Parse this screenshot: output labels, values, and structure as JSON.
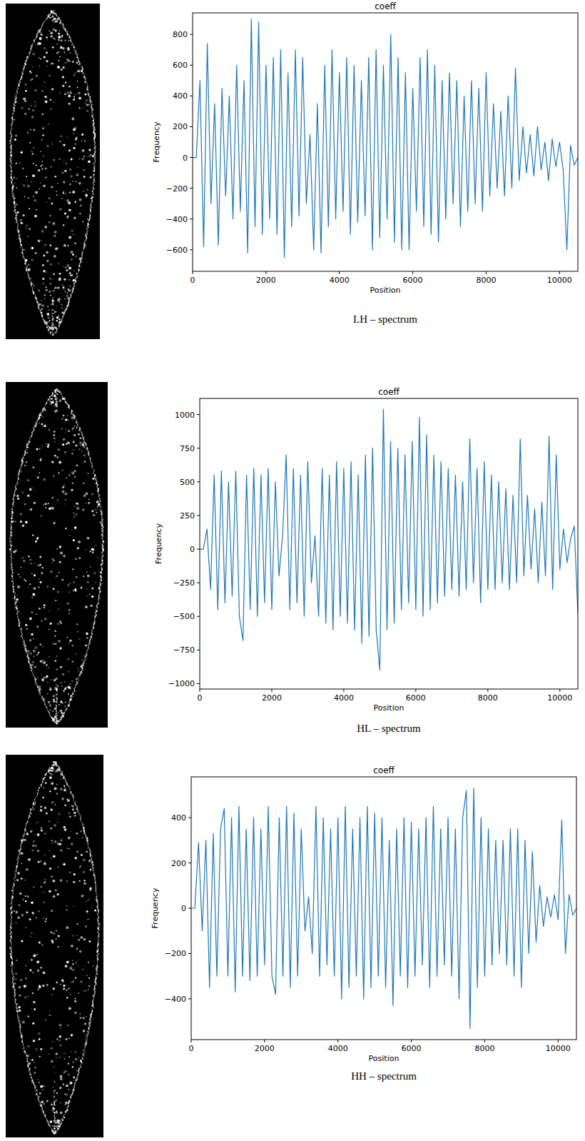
{
  "chart_data": [
    {
      "type": "line",
      "title": "coeff",
      "x_label": "Position",
      "y_label": "Frequency",
      "caption": "LH – spectrum",
      "color": "#1f77b4",
      "xlim": [
        0,
        10500
      ],
      "xticks": [
        0,
        2000,
        4000,
        6000,
        8000,
        10000
      ],
      "ylim": [
        -740,
        940
      ],
      "yticks": [
        {
          "value": -600,
          "label": "−600"
        },
        {
          "value": -400,
          "label": "−400"
        },
        {
          "value": -200,
          "label": "−200"
        },
        0,
        200,
        400,
        600,
        800
      ],
      "x": [
        0,
        100,
        200,
        300,
        400,
        500,
        600,
        700,
        800,
        900,
        1000,
        1100,
        1200,
        1300,
        1400,
        1500,
        1600,
        1700,
        1800,
        1900,
        2000,
        2100,
        2200,
        2300,
        2400,
        2500,
        2600,
        2700,
        2800,
        2900,
        3000,
        3100,
        3200,
        3300,
        3400,
        3500,
        3600,
        3700,
        3800,
        3900,
        4000,
        4100,
        4200,
        4300,
        4400,
        4500,
        4600,
        4700,
        4800,
        4900,
        5000,
        5100,
        5200,
        5300,
        5400,
        5500,
        5600,
        5700,
        5800,
        5900,
        6000,
        6100,
        6200,
        6300,
        6400,
        6500,
        6600,
        6700,
        6800,
        6900,
        7000,
        7100,
        7200,
        7300,
        7400,
        7500,
        7600,
        7700,
        7800,
        7900,
        8000,
        8100,
        8200,
        8300,
        8400,
        8500,
        8600,
        8700,
        8800,
        8900,
        9000,
        9100,
        9200,
        9300,
        9400,
        9500,
        9600,
        9700,
        9800,
        9900,
        10000,
        10100,
        10200,
        10300,
        10400,
        10500
      ],
      "values": [
        0,
        0,
        500,
        -580,
        740,
        -300,
        350,
        -570,
        450,
        -250,
        400,
        -400,
        600,
        -350,
        500,
        -620,
        900,
        -450,
        880,
        -500,
        600,
        -400,
        650,
        -500,
        700,
        -650,
        550,
        -450,
        700,
        -380,
        650,
        -300,
        150,
        -600,
        350,
        -620,
        600,
        -450,
        700,
        -400,
        550,
        -350,
        650,
        -500,
        600,
        -420,
        500,
        -380,
        650,
        -600,
        700,
        -520,
        600,
        -400,
        800,
        -550,
        650,
        -600,
        550,
        -600,
        450,
        -350,
        650,
        -450,
        700,
        -500,
        600,
        -550,
        500,
        -400,
        550,
        -300,
        500,
        -450,
        400,
        -350,
        500,
        -300,
        450,
        -350,
        550,
        -250,
        350,
        -200,
        300,
        -250,
        400,
        -200,
        580,
        -150,
        200,
        -100,
        150,
        -120,
        200,
        -80,
        100,
        -150,
        120,
        -60,
        100,
        -80,
        -600,
        80,
        -50,
        0
      ]
    },
    {
      "type": "line",
      "title": "coeff",
      "x_label": "Position",
      "y_label": "Frequency",
      "caption": "HL – spectrum",
      "color": "#1f77b4",
      "xlim": [
        0,
        10500
      ],
      "xticks": [
        0,
        2000,
        4000,
        6000,
        8000,
        10000
      ],
      "ylim": [
        -1040,
        1120
      ],
      "yticks": [
        {
          "value": -1000,
          "label": "−1000"
        },
        {
          "value": -750,
          "label": "−750"
        },
        {
          "value": -500,
          "label": "−500"
        },
        {
          "value": -250,
          "label": "−250"
        },
        0,
        250,
        500,
        750,
        1000
      ],
      "x": [
        0,
        100,
        200,
        300,
        400,
        500,
        600,
        700,
        800,
        900,
        1000,
        1100,
        1200,
        1300,
        1400,
        1500,
        1600,
        1700,
        1800,
        1900,
        2000,
        2100,
        2200,
        2300,
        2400,
        2500,
        2600,
        2700,
        2800,
        2900,
        3000,
        3100,
        3200,
        3300,
        3400,
        3500,
        3600,
        3700,
        3800,
        3900,
        4000,
        4100,
        4200,
        4300,
        4400,
        4500,
        4600,
        4700,
        4800,
        4900,
        5000,
        5100,
        5200,
        5300,
        5400,
        5500,
        5600,
        5700,
        5800,
        5900,
        6000,
        6100,
        6200,
        6300,
        6400,
        6500,
        6600,
        6700,
        6800,
        6900,
        7000,
        7100,
        7200,
        7300,
        7400,
        7500,
        7600,
        7700,
        7800,
        7900,
        8000,
        8100,
        8200,
        8300,
        8400,
        8500,
        8600,
        8700,
        8800,
        8900,
        9000,
        9100,
        9200,
        9300,
        9400,
        9500,
        9600,
        9700,
        9800,
        9900,
        10000,
        10100,
        10200,
        10300,
        10400,
        10500
      ],
      "values": [
        0,
        0,
        150,
        -300,
        550,
        -450,
        580,
        -400,
        500,
        -350,
        580,
        -500,
        -680,
        550,
        -450,
        600,
        -500,
        550,
        -400,
        600,
        -450,
        500,
        -200,
        100,
        700,
        -450,
        600,
        -400,
        550,
        -500,
        650,
        -250,
        100,
        -500,
        600,
        -550,
        550,
        -600,
        650,
        -500,
        600,
        -550,
        650,
        -600,
        550,
        -700,
        700,
        -650,
        750,
        -600,
        -900,
        1040,
        -600,
        800,
        -550,
        750,
        -450,
        700,
        -400,
        800,
        -450,
        980,
        -500,
        850,
        -450,
        700,
        -400,
        650,
        -350,
        600,
        -300,
        550,
        -350,
        500,
        -300,
        820,
        -250,
        600,
        -400,
        650,
        -300,
        550,
        -300,
        500,
        -250,
        450,
        -300,
        400,
        -250,
        820,
        -200,
        400,
        -150,
        300,
        -250,
        350,
        -200,
        840,
        -300,
        700,
        -150,
        150,
        -100,
        80,
        170,
        -480
      ]
    },
    {
      "type": "line",
      "title": "coeff",
      "x_label": "Position",
      "y_label": "Frequency",
      "caption": "HH – spectrum",
      "color": "#1f77b4",
      "xlim": [
        0,
        10500
      ],
      "xticks": [
        0,
        2000,
        4000,
        6000,
        8000,
        10000
      ],
      "ylim": [
        -580,
        580
      ],
      "yticks": [
        {
          "value": -400,
          "label": "−400"
        },
        {
          "value": -200,
          "label": "−200"
        },
        0,
        200,
        400
      ],
      "x": [
        0,
        100,
        200,
        300,
        400,
        500,
        600,
        700,
        800,
        900,
        1000,
        1100,
        1200,
        1300,
        1400,
        1500,
        1600,
        1700,
        1800,
        1900,
        2000,
        2100,
        2200,
        2300,
        2400,
        2500,
        2600,
        2700,
        2800,
        2900,
        3000,
        3100,
        3200,
        3300,
        3400,
        3500,
        3600,
        3700,
        3800,
        3900,
        4000,
        4100,
        4200,
        4300,
        4400,
        4500,
        4600,
        4700,
        4800,
        4900,
        5000,
        5100,
        5200,
        5300,
        5400,
        5500,
        5600,
        5700,
        5800,
        5900,
        6000,
        6100,
        6200,
        6300,
        6400,
        6500,
        6600,
        6700,
        6800,
        6900,
        7000,
        7100,
        7200,
        7300,
        7400,
        7500,
        7600,
        7700,
        7800,
        7900,
        8000,
        8100,
        8200,
        8300,
        8400,
        8500,
        8600,
        8700,
        8800,
        8900,
        9000,
        9100,
        9200,
        9300,
        9400,
        9500,
        9600,
        9700,
        9800,
        9900,
        10000,
        10100,
        10200,
        10300,
        10400,
        10500
      ],
      "values": [
        0,
        0,
        290,
        -100,
        300,
        -350,
        330,
        -300,
        350,
        440,
        -300,
        400,
        -370,
        450,
        -300,
        350,
        -320,
        400,
        -300,
        350,
        -250,
        450,
        -300,
        -380,
        400,
        -300,
        450,
        -350,
        420,
        -300,
        350,
        -100,
        50,
        -200,
        450,
        -300,
        400,
        -250,
        350,
        -300,
        400,
        -400,
        450,
        -350,
        350,
        -300,
        400,
        -400,
        450,
        -350,
        420,
        -300,
        400,
        -350,
        300,
        -430,
        350,
        -300,
        400,
        -350,
        380,
        -300,
        350,
        -250,
        400,
        -350,
        450,
        -300,
        350,
        -250,
        400,
        -300,
        350,
        -400,
        400,
        520,
        -530,
        530,
        -350,
        400,
        -300,
        350,
        -250,
        300,
        -200,
        300,
        -250,
        350,
        -300,
        350,
        -350,
        300,
        -200,
        250,
        -150,
        100,
        -80,
        50,
        -40,
        60,
        -50,
        390,
        -200,
        60,
        -30,
        0
      ]
    }
  ]
}
